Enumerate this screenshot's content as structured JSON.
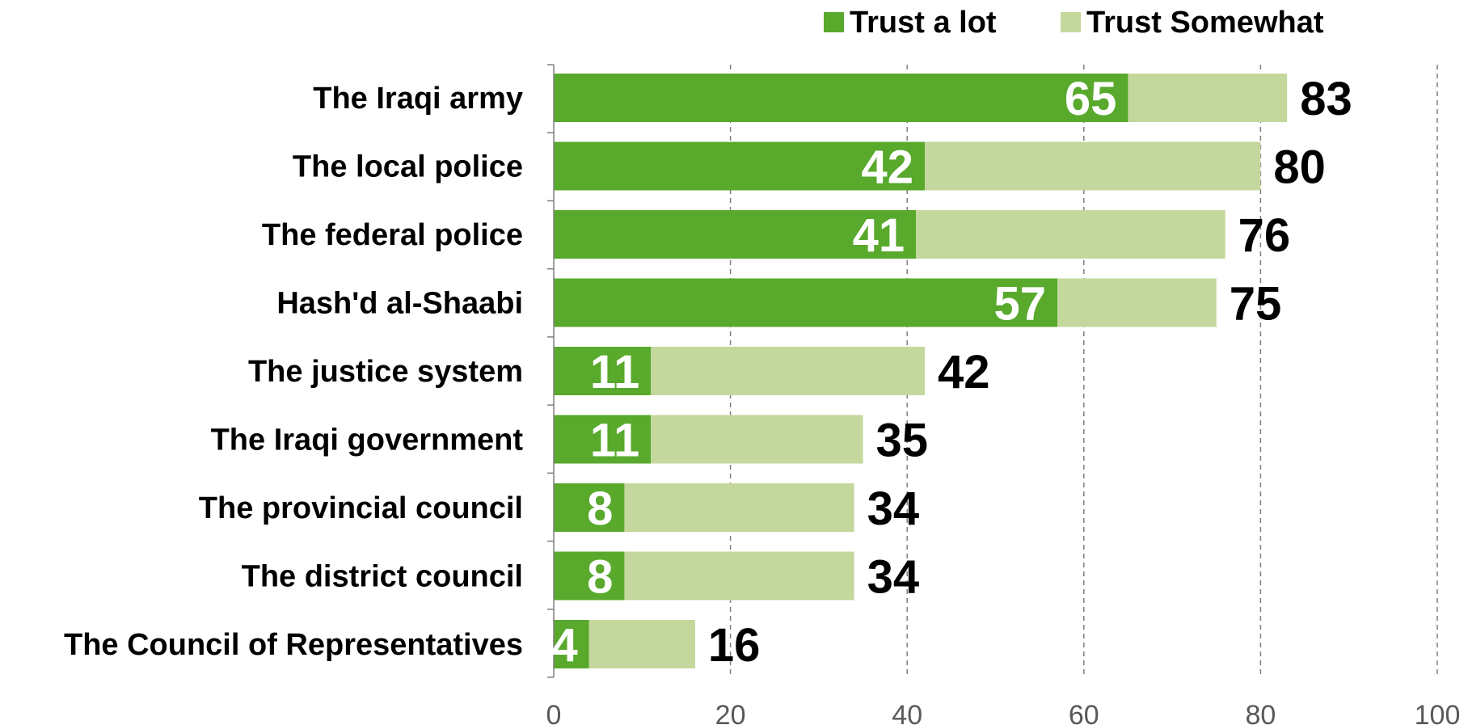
{
  "colors": {
    "trust_a_lot": "#58a92c",
    "trust_somewhat": "#c4d89d",
    "grid": "#7f7f7f",
    "axis": "#7f7f7f"
  },
  "chart_data": {
    "type": "bar",
    "orientation": "horizontal",
    "stacked": true,
    "title": "",
    "xlabel": "",
    "ylabel": "",
    "xlim": [
      0,
      100
    ],
    "x_ticks": [
      0,
      20,
      40,
      60,
      80,
      100
    ],
    "grid": "vertical-dashed",
    "legend_position": "top-right",
    "categories": [
      "The Iraqi army",
      "The local police",
      "The federal police",
      "Hash'd al-Shaabi",
      "The justice system",
      "The Iraqi government",
      "The provincial council",
      "The district council",
      "The Council of Representatives"
    ],
    "series": [
      {
        "name": "Trust a lot",
        "values": [
          65,
          42,
          41,
          57,
          11,
          11,
          8,
          8,
          4
        ]
      },
      {
        "name": "Trust Somewhat",
        "values": [
          18,
          38,
          35,
          18,
          31,
          24,
          26,
          26,
          12
        ]
      }
    ],
    "inner_labels": [
      "65",
      "42",
      "41",
      "57",
      "11",
      "11",
      "8",
      "8",
      "4"
    ],
    "totals": [
      83,
      80,
      76,
      75,
      42,
      35,
      34,
      34,
      16
    ]
  }
}
